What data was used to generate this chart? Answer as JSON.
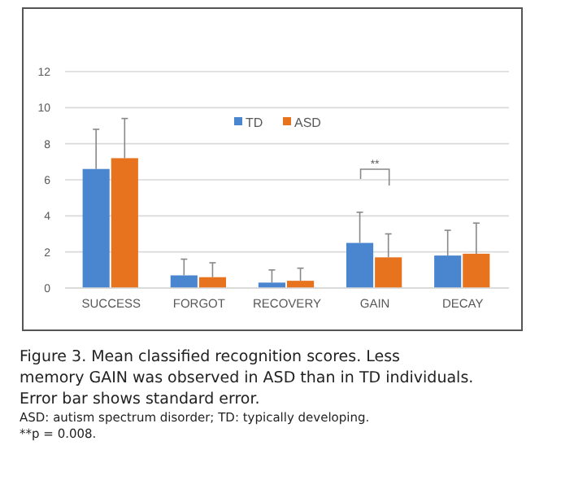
{
  "chart_data": {
    "type": "bar",
    "categories": [
      "SUCCESS",
      "FORGOT",
      "RECOVERY",
      "GAIN",
      "DECAY"
    ],
    "series": [
      {
        "name": "TD",
        "color": "#4a86d0",
        "values": [
          6.6,
          0.7,
          0.3,
          2.5,
          1.8
        ],
        "errors": [
          [
            6.6,
            8.8
          ],
          [
            0.7,
            1.6
          ],
          [
            0.3,
            1.0
          ],
          [
            2.5,
            4.2
          ],
          [
            1.8,
            3.2
          ]
        ]
      },
      {
        "name": "ASD",
        "color": "#e8731f",
        "values": [
          7.2,
          0.6,
          0.4,
          1.7,
          1.9
        ],
        "errors": [
          [
            7.2,
            9.4
          ],
          [
            0.6,
            1.4
          ],
          [
            0.4,
            1.1
          ],
          [
            1.7,
            3.0
          ],
          [
            1.9,
            3.6
          ]
        ]
      }
    ],
    "ylim": [
      0,
      12
    ],
    "yticks": [
      0,
      2,
      4,
      6,
      8,
      10,
      12
    ],
    "grid": "y",
    "legend": "top",
    "annotations": [
      "**",
      "Figure 3. Mean classified recognition scores. Less memory GAIN was observed in ASD than in TD individuals. Error bar shows standard error.",
      "ASD: autism spectrum disorder; TD: typically developing.",
      "**p = 0.008."
    ]
  }
}
